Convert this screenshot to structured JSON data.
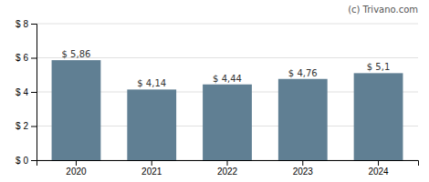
{
  "chart_data": {
    "type": "bar",
    "annotation": "(c) Trivano.com",
    "categories": [
      "2020",
      "2021",
      "2022",
      "2023",
      "2024"
    ],
    "values": [
      5.86,
      4.14,
      4.44,
      4.76,
      5.1
    ],
    "value_labels": [
      "$ 5,86",
      "$ 4,14",
      "$ 4,44",
      "$ 4,76",
      "$ 5,1"
    ],
    "color": "#607f93",
    "ylim": [
      0,
      8
    ],
    "yticks": [
      {
        "value": 0,
        "label": "$ 0"
      },
      {
        "value": 2,
        "label": "$ 2"
      },
      {
        "value": 4,
        "label": "$ 4"
      },
      {
        "value": 6,
        "label": "$ 6"
      },
      {
        "value": 8,
        "label": "$ 8"
      }
    ],
    "grid": true,
    "data_labels": true
  }
}
